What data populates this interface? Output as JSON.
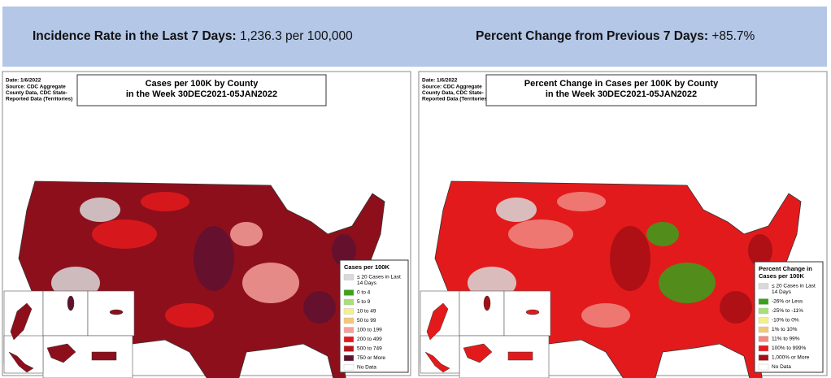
{
  "header": {
    "left": {
      "label": "Incidence Rate in the Last 7 Days:",
      "value": "1,236.3 per 100,000"
    },
    "right": {
      "label": "Percent Change from Previous 7 Days:",
      "value": "+85.7%"
    }
  },
  "maps": [
    {
      "date": "Date: 1/6/2022",
      "source": [
        "Source: CDC Aggregate",
        "County Data, CDC State-",
        "Reported Data (Territories)"
      ],
      "title": [
        "Cases per 100K by County",
        "in the Week 30DEC2021-05JAN2022"
      ],
      "base_color": "#8e0f1c",
      "patch_colors": [
        "#e31a1c",
        "#5e1230",
        "#d9d9d9",
        "#f4a09a"
      ],
      "legend": {
        "title": [
          "Cases per 100K"
        ],
        "items": [
          {
            "label": [
              "≤ 20 Cases in Last",
              "14 Days"
            ],
            "color": "#d9d9d9"
          },
          {
            "label": [
              "0 to 4"
            ],
            "color": "#3da11a"
          },
          {
            "label": [
              "5 to 9"
            ],
            "color": "#a6e07a"
          },
          {
            "label": [
              "10 to 49"
            ],
            "color": "#f5f08a"
          },
          {
            "label": [
              "50 to 99"
            ],
            "color": "#f5c67a"
          },
          {
            "label": [
              "100 to 199"
            ],
            "color": "#f4a09a"
          },
          {
            "label": [
              "200 to 499"
            ],
            "color": "#e31a1c"
          },
          {
            "label": [
              "500 to 749"
            ],
            "color": "#b3151b"
          },
          {
            "label": [
              "750 or More"
            ],
            "color": "#5e1230"
          },
          {
            "label": [
              "No Data"
            ],
            "color": "#ffffff"
          }
        ]
      }
    },
    {
      "date": "Date: 1/6/2022",
      "source": [
        "Source: CDC Aggregate",
        "County Data, CDC State-",
        "Reported Data (Territories)"
      ],
      "title": [
        "Percent Change in Cases per 100K by County",
        "in the Week 30DEC2021-05JAN2022"
      ],
      "base_color": "#e31a1c",
      "patch_colors": [
        "#f08a80",
        "#a50f15",
        "#d9d9d9",
        "#38a11a"
      ],
      "legend": {
        "title": [
          "Percent Change in",
          "Cases per 100K"
        ],
        "items": [
          {
            "label": [
              "≤ 20 Cases in Last",
              "14 Days"
            ],
            "color": "#d9d9d9"
          },
          {
            "label": [
              "-26% or Less"
            ],
            "color": "#38a11a"
          },
          {
            "label": [
              "-25% to -11%"
            ],
            "color": "#a6e07a"
          },
          {
            "label": [
              "-10% to 0%"
            ],
            "color": "#f5f08a"
          },
          {
            "label": [
              "1% to 10%"
            ],
            "color": "#f5c67a"
          },
          {
            "label": [
              "11% to 99%"
            ],
            "color": "#f08a80"
          },
          {
            "label": [
              "100% to 999%"
            ],
            "color": "#e31a1c"
          },
          {
            "label": [
              "1,000% or More"
            ],
            "color": "#a50f15"
          },
          {
            "label": [
              "No Data"
            ],
            "color": "#ffffff"
          }
        ]
      }
    }
  ]
}
